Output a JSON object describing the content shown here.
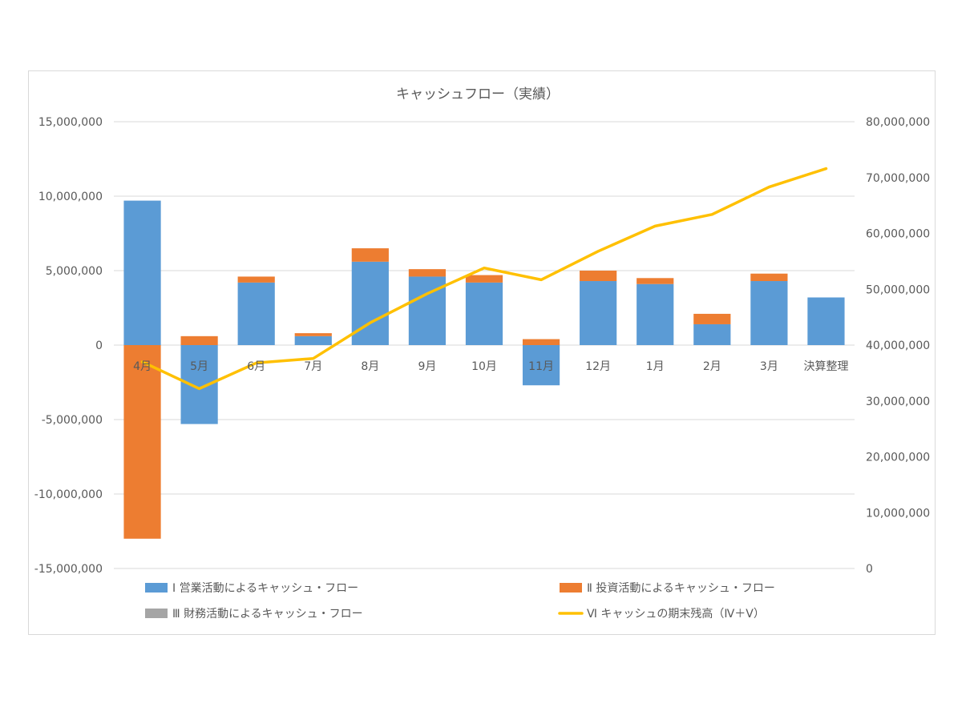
{
  "chart_data": {
    "type": "bar",
    "title": "キャッシュフロー（実績）",
    "categories": [
      "4月",
      "5月",
      "6月",
      "7月",
      "8月",
      "9月",
      "10月",
      "11月",
      "12月",
      "1月",
      "2月",
      "3月",
      "決算整理"
    ],
    "series": [
      {
        "name": "Ⅰ 営業活動によるキャッシュ・フロー",
        "type": "bar",
        "axis": "left",
        "color": "#5b9bd5",
        "values": [
          9700000,
          -5300000,
          4200000,
          600000,
          5600000,
          4600000,
          4200000,
          -2700000,
          4300000,
          4100000,
          1400000,
          4300000,
          3200000
        ]
      },
      {
        "name": "Ⅱ 投資活動によるキャッシュ・フロー",
        "type": "bar",
        "axis": "left",
        "color": "#ed7d31",
        "values": [
          -13000000,
          600000,
          400000,
          200000,
          900000,
          500000,
          500000,
          400000,
          700000,
          400000,
          700000,
          500000,
          0
        ]
      },
      {
        "name": "Ⅲ 財務活動によるキャッシュ・フロー",
        "type": "bar",
        "axis": "left",
        "color": "#a5a5a5",
        "values": [
          0,
          0,
          0,
          0,
          0,
          0,
          0,
          0,
          0,
          0,
          0,
          0,
          0
        ]
      },
      {
        "name": "Ⅵ キャッシュの期末残高（Ⅳ＋Ⅴ）",
        "type": "line",
        "axis": "right",
        "color": "#ffc000",
        "values": [
          37000000,
          32200000,
          36800000,
          37600000,
          44000000,
          49200000,
          53800000,
          51700000,
          56800000,
          61300000,
          63400000,
          68300000,
          71600000
        ]
      }
    ],
    "y_left": {
      "range": [
        -15000000,
        15000000
      ],
      "ticks": [
        "15,000,000",
        "10,000,000",
        "5,000,000",
        "0",
        "-5,000,000",
        "-10,000,000",
        "-15,000,000"
      ],
      "tick_values": [
        15000000,
        10000000,
        5000000,
        0,
        -5000000,
        -10000000,
        -15000000
      ],
      "negative_color": "#ff0000",
      "positive_color": "#595959"
    },
    "y_right": {
      "range": [
        0,
        80000000
      ],
      "ticks": [
        "80,000,000",
        "70,000,000",
        "60,000,000",
        "50,000,000",
        "40,000,000",
        "30,000,000",
        "20,000,000",
        "10,000,000",
        "0"
      ],
      "tick_values": [
        80000000,
        70000000,
        60000000,
        50000000,
        40000000,
        30000000,
        20000000,
        10000000,
        0
      ]
    },
    "grid": true,
    "legend_position": "bottom",
    "stacked": true
  }
}
